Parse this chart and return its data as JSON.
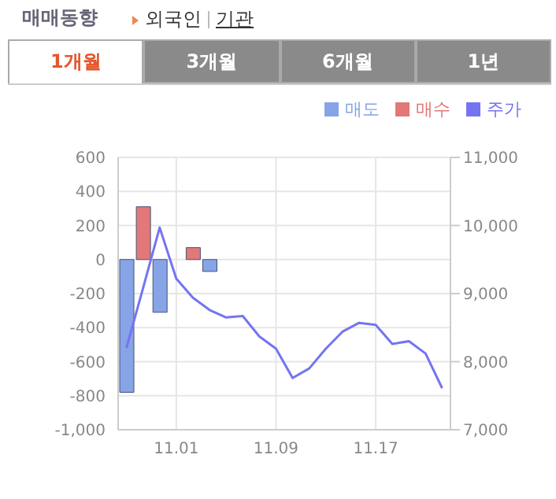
{
  "chart_data": {
    "type": "bar",
    "title": "매매동향",
    "annotations": [
      "외국인",
      "기관",
      "1개월",
      "3개월",
      "6개월",
      "1년"
    ],
    "categories": [
      null,
      null,
      null,
      "11.01",
      null,
      null,
      null,
      null,
      null,
      "11.09",
      null,
      null,
      null,
      null,
      null,
      "11.17",
      null,
      null,
      null,
      null
    ],
    "stacked": true,
    "legend": "top right",
    "grid": true,
    "ylim": [
      -1000,
      600
    ],
    "yticks": [
      {
        "value": -1000,
        "label": "-1,000"
      },
      -800,
      -600,
      -400,
      -200,
      0,
      200,
      400,
      600
    ],
    "y2lim": [
      7000,
      11000
    ],
    "y2ticks": [
      {
        "value": 7000,
        "label": "7,000"
      },
      {
        "value": 8000,
        "label": "8,000"
      },
      {
        "value": 9000,
        "label": "9,000"
      },
      {
        "value": 10000,
        "label": "10,000"
      },
      {
        "value": 11000,
        "label": "11,000"
      }
    ],
    "series": [
      {
        "name": "매도",
        "color": "#86a4e6",
        "values": [
          -780,
          0,
          -310,
          0,
          0,
          -70,
          0,
          0,
          0,
          0,
          0,
          0,
          0,
          0,
          0,
          0,
          0,
          0,
          0,
          0
        ]
      },
      {
        "name": "매수",
        "color": "#e27878",
        "values": [
          0,
          310,
          0,
          0,
          70,
          0,
          0,
          0,
          0,
          0,
          0,
          0,
          0,
          0,
          0,
          0,
          0,
          0,
          0,
          0
        ]
      },
      {
        "name": "주가",
        "type": "line",
        "axis": "y2",
        "color": "#7474f2",
        "values": [
          8200,
          9080,
          9970,
          9220,
          8940,
          8760,
          8650,
          8670,
          8370,
          8190,
          7760,
          7900,
          8190,
          8440,
          8570,
          8540,
          8260,
          8300,
          8120,
          7610
        ]
      }
    ]
  }
}
